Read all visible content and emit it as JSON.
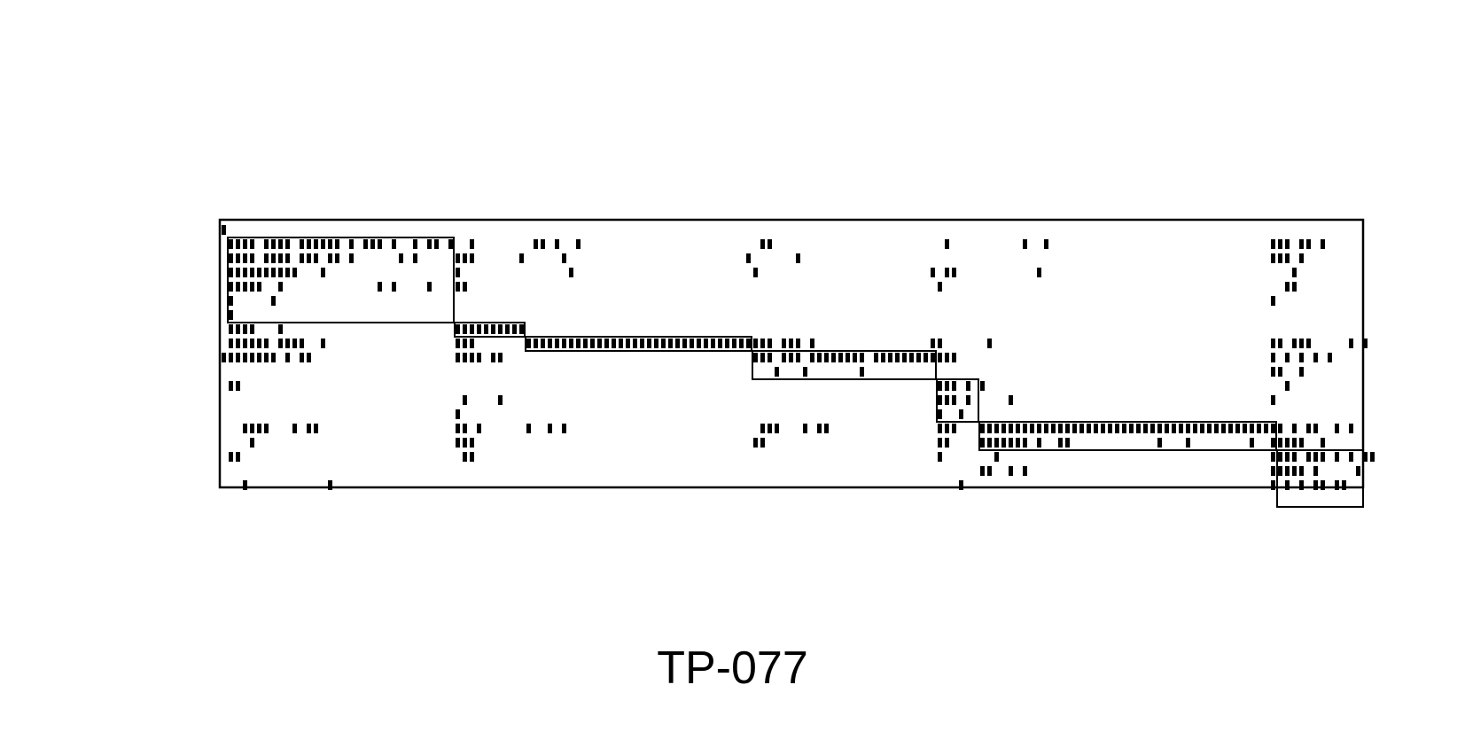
{
  "caption": "TP-077",
  "colors": {
    "ink": "#000000",
    "background": "#ffffff"
  },
  "matrix": {
    "type": "sparse-block-matrix",
    "n_rows": 19,
    "n_cols": 162,
    "blocks": [
      {
        "rows": [
          1,
          6
        ],
        "cols": [
          1,
          32
        ]
      },
      {
        "rows": [
          7,
          7
        ],
        "cols": [
          33,
          42
        ]
      },
      {
        "rows": [
          8,
          8
        ],
        "cols": [
          43,
          74
        ]
      },
      {
        "rows": [
          9,
          10
        ],
        "cols": [
          75,
          100
        ]
      },
      {
        "rows": [
          11,
          13
        ],
        "cols": [
          101,
          106
        ]
      },
      {
        "rows": [
          14,
          15
        ],
        "cols": [
          107,
          148
        ]
      },
      {
        "rows": [
          16,
          19
        ],
        "cols": [
          149,
          162
        ]
      }
    ],
    "rows": [
      {
        "segments": [
          [
            0,
            0
          ]
        ]
      },
      {
        "segments": [
          [
            1,
            4
          ],
          [
            6,
            9
          ],
          [
            11,
            16
          ],
          [
            18,
            18
          ],
          [
            20,
            22
          ],
          [
            24,
            24
          ],
          [
            27,
            27
          ],
          [
            29,
            30
          ],
          [
            32,
            32
          ],
          [
            35,
            35
          ],
          [
            44,
            45
          ],
          [
            47,
            47
          ],
          [
            50,
            50
          ],
          [
            76,
            77
          ],
          [
            102,
            102
          ],
          [
            113,
            113
          ],
          [
            116,
            116
          ],
          [
            148,
            150
          ],
          [
            152,
            153
          ],
          [
            155,
            155
          ]
        ]
      },
      {
        "segments": [
          [
            1,
            4
          ],
          [
            6,
            9
          ],
          [
            11,
            13
          ],
          [
            15,
            16
          ],
          [
            18,
            18
          ],
          [
            25,
            25
          ],
          [
            27,
            27
          ],
          [
            33,
            35
          ],
          [
            42,
            42
          ],
          [
            48,
            48
          ],
          [
            74,
            74
          ],
          [
            81,
            81
          ],
          [
            148,
            150
          ],
          [
            152,
            152
          ]
        ]
      },
      {
        "segments": [
          [
            1,
            10
          ],
          [
            14,
            14
          ],
          [
            33,
            33
          ],
          [
            49,
            49
          ],
          [
            75,
            75
          ],
          [
            100,
            100
          ],
          [
            102,
            103
          ],
          [
            115,
            115
          ],
          [
            151,
            151
          ]
        ]
      },
      {
        "segments": [
          [
            1,
            5
          ],
          [
            8,
            8
          ],
          [
            22,
            22
          ],
          [
            24,
            24
          ],
          [
            29,
            29
          ],
          [
            33,
            34
          ],
          [
            101,
            101
          ],
          [
            150,
            151
          ]
        ]
      },
      {
        "segments": [
          [
            1,
            1
          ],
          [
            7,
            7
          ],
          [
            148,
            148
          ]
        ]
      },
      {
        "segments": [
          [
            1,
            1
          ]
        ]
      },
      {
        "segments": [
          [
            1,
            4
          ],
          [
            8,
            8
          ],
          [
            33,
            42
          ]
        ]
      },
      {
        "segments": [
          [
            1,
            6
          ],
          [
            8,
            10
          ],
          [
            11,
            11
          ],
          [
            14,
            14
          ],
          [
            33,
            35
          ],
          [
            43,
            74
          ],
          [
            75,
            77
          ],
          [
            79,
            81
          ],
          [
            83,
            83
          ],
          [
            100,
            101
          ],
          [
            108,
            108
          ],
          [
            148,
            149
          ],
          [
            151,
            153
          ],
          [
            159,
            159
          ],
          [
            161,
            161
          ]
        ]
      },
      {
        "segments": [
          [
            0,
            4
          ],
          [
            5,
            7
          ],
          [
            9,
            9
          ],
          [
            11,
            12
          ],
          [
            33,
            36
          ],
          [
            38,
            39
          ],
          [
            75,
            77
          ],
          [
            79,
            81
          ],
          [
            83,
            90
          ],
          [
            92,
            100
          ],
          [
            101,
            103
          ],
          [
            148,
            148
          ],
          [
            150,
            150
          ],
          [
            152,
            152
          ],
          [
            154,
            154
          ],
          [
            156,
            156
          ]
        ]
      },
      {
        "segments": [
          [
            78,
            78
          ],
          [
            82,
            82
          ],
          [
            90,
            90
          ],
          [
            148,
            149
          ],
          [
            152,
            152
          ]
        ]
      },
      {
        "segments": [
          [
            1,
            2
          ],
          [
            101,
            103
          ],
          [
            105,
            105
          ],
          [
            107,
            107
          ],
          [
            150,
            150
          ]
        ]
      },
      {
        "segments": [
          [
            34,
            34
          ],
          [
            39,
            39
          ],
          [
            101,
            103
          ],
          [
            105,
            105
          ],
          [
            111,
            111
          ],
          [
            148,
            148
          ]
        ]
      },
      {
        "segments": [
          [
            33,
            33
          ],
          [
            101,
            101
          ],
          [
            104,
            104
          ]
        ]
      },
      {
        "segments": [
          [
            3,
            6
          ],
          [
            10,
            10
          ],
          [
            12,
            13
          ],
          [
            33,
            34
          ],
          [
            36,
            36
          ],
          [
            43,
            43
          ],
          [
            46,
            46
          ],
          [
            48,
            48
          ],
          [
            76,
            78
          ],
          [
            82,
            82
          ],
          [
            84,
            85
          ],
          [
            101,
            103
          ],
          [
            107,
            148
          ],
          [
            149,
            149
          ],
          [
            151,
            151
          ],
          [
            153,
            154
          ],
          [
            157,
            157
          ],
          [
            159,
            159
          ]
        ]
      },
      {
        "segments": [
          [
            4,
            4
          ],
          [
            33,
            35
          ],
          [
            75,
            76
          ],
          [
            101,
            102
          ],
          [
            107,
            113
          ],
          [
            115,
            115
          ],
          [
            118,
            119
          ],
          [
            132,
            132
          ],
          [
            136,
            136
          ],
          [
            145,
            145
          ],
          [
            148,
            152
          ],
          [
            155,
            155
          ]
        ]
      },
      {
        "segments": [
          [
            1,
            2
          ],
          [
            34,
            35
          ],
          [
            101,
            101
          ],
          [
            109,
            109
          ],
          [
            148,
            151
          ],
          [
            153,
            155
          ],
          [
            157,
            157
          ],
          [
            159,
            159
          ],
          [
            161,
            162
          ]
        ]
      },
      {
        "segments": [
          [
            107,
            108
          ],
          [
            111,
            111
          ],
          [
            113,
            113
          ],
          [
            148,
            152
          ],
          [
            154,
            154
          ],
          [
            160,
            160
          ]
        ]
      },
      {
        "segments": [
          [
            3,
            3
          ],
          [
            15,
            15
          ],
          [
            104,
            104
          ],
          [
            148,
            148
          ],
          [
            150,
            150
          ],
          [
            152,
            152
          ],
          [
            154,
            155
          ],
          [
            157,
            158
          ]
        ]
      }
    ]
  }
}
